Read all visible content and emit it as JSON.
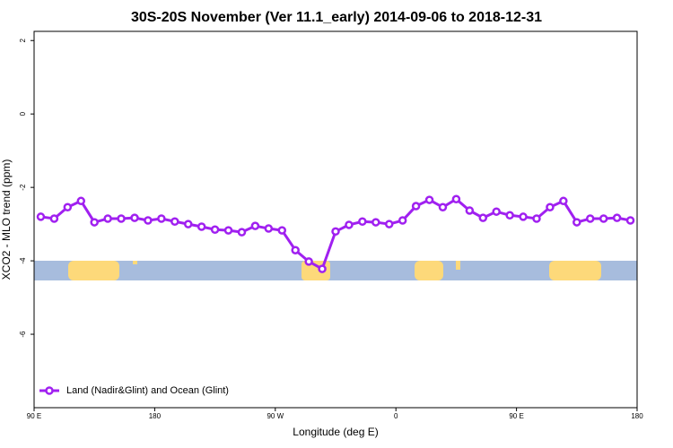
{
  "chart_data": {
    "type": "line",
    "title": "30S-20S November (Ver 11.1_early)   2014-09-06 to 2018-12-31",
    "x_label": "Longitude (deg E)",
    "y_label": "XCO2 - MLO trend (ppm)",
    "x": [
      95,
      105,
      115,
      125,
      135,
      145,
      155,
      165,
      175,
      185,
      195,
      205,
      215,
      225,
      235,
      245,
      255,
      265,
      275,
      285,
      295,
      305,
      315,
      325,
      335,
      345,
      355,
      365,
      375,
      385,
      395,
      405,
      415,
      425,
      435,
      445,
      455,
      465,
      475,
      485,
      495,
      505,
      515,
      525,
      535
    ],
    "series": [
      {
        "name": "Land (Nadir&Glint) and Ocean (Glint)",
        "color": "#a020f0",
        "values": [
          -2.8,
          -2.85,
          -2.54,
          -2.37,
          -2.95,
          -2.85,
          -2.85,
          -2.83,
          -2.9,
          -2.85,
          -2.93,
          -3.0,
          -3.07,
          -3.15,
          -3.17,
          -3.22,
          -3.05,
          -3.12,
          -3.17,
          -3.71,
          -4.02,
          -4.22,
          -3.2,
          -3.02,
          -2.93,
          -2.95,
          -3.0,
          -2.9,
          -2.51,
          -2.34,
          -2.54,
          -2.32,
          -2.63,
          -2.83,
          -2.66,
          -2.76,
          -2.8,
          -2.85,
          -2.54,
          -2.37,
          -2.95,
          -2.85,
          -2.85,
          -2.83,
          -2.9
        ]
      }
    ],
    "xlim": [
      90,
      540
    ],
    "xticks": [
      {
        "value": 90,
        "label": "90 E"
      },
      180,
      {
        "value": 270,
        "label": "90 W"
      },
      {
        "value": 360,
        "label": "0"
      },
      {
        "value": 450,
        "label": "90 E"
      },
      {
        "value": 540,
        "label": "180"
      }
    ],
    "ylim": [
      -8,
      2.25
    ],
    "yticks": [
      -6,
      -4,
      -2,
      0,
      2
    ],
    "legend_position": "bottom-left"
  }
}
